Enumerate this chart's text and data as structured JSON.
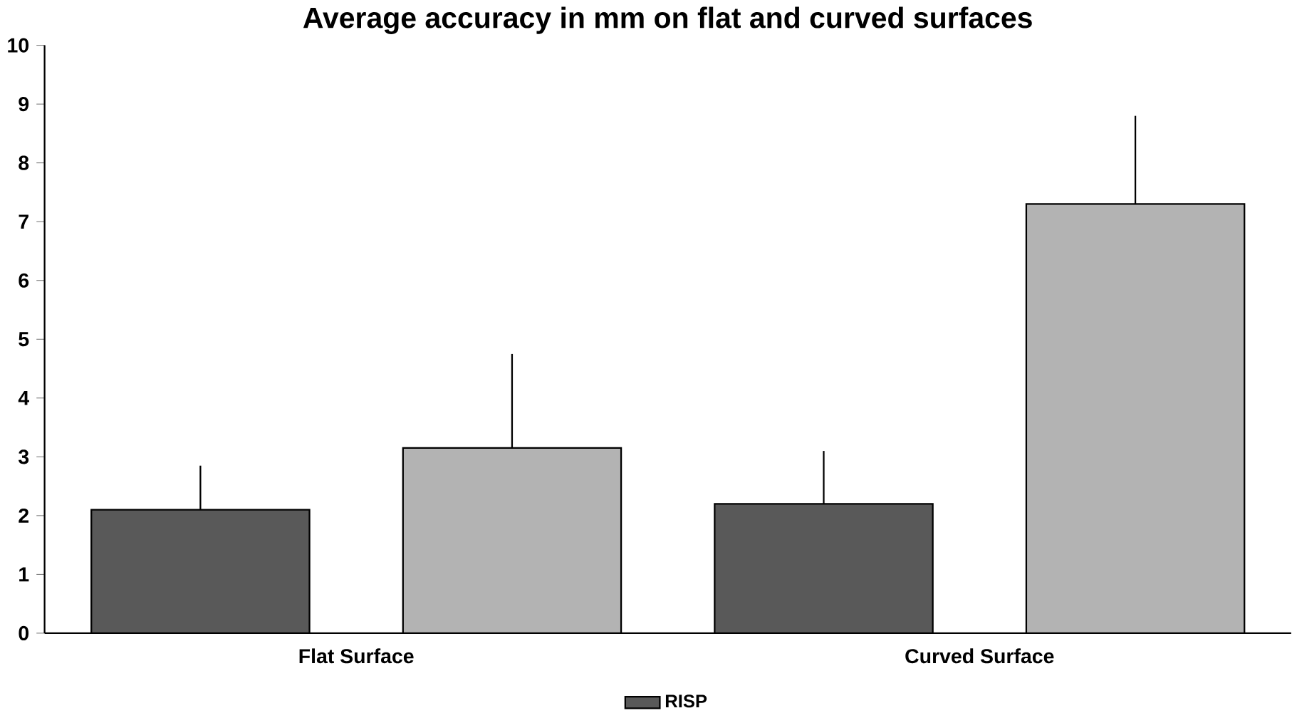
{
  "chart_data": {
    "type": "bar",
    "title": "Average accuracy in mm on flat and curved surfaces",
    "categories": [
      "Flat Surface",
      "Curved Surface"
    ],
    "series": [
      {
        "name": "RISP",
        "color": "#595959",
        "values": [
          2.1,
          2.2
        ],
        "errors": [
          [
            2.1,
            2.85
          ],
          [
            2.2,
            3.1
          ]
        ]
      },
      {
        "color": "#b3b3b3",
        "values": [
          3.15,
          7.3
        ],
        "errors": [
          [
            3.15,
            4.75
          ],
          [
            7.3,
            8.8
          ]
        ]
      }
    ],
    "ylim": [
      0,
      10
    ],
    "yticks": [
      0,
      1,
      2,
      3,
      4,
      5,
      6,
      7,
      8,
      9,
      10
    ],
    "legend": "bottom"
  }
}
